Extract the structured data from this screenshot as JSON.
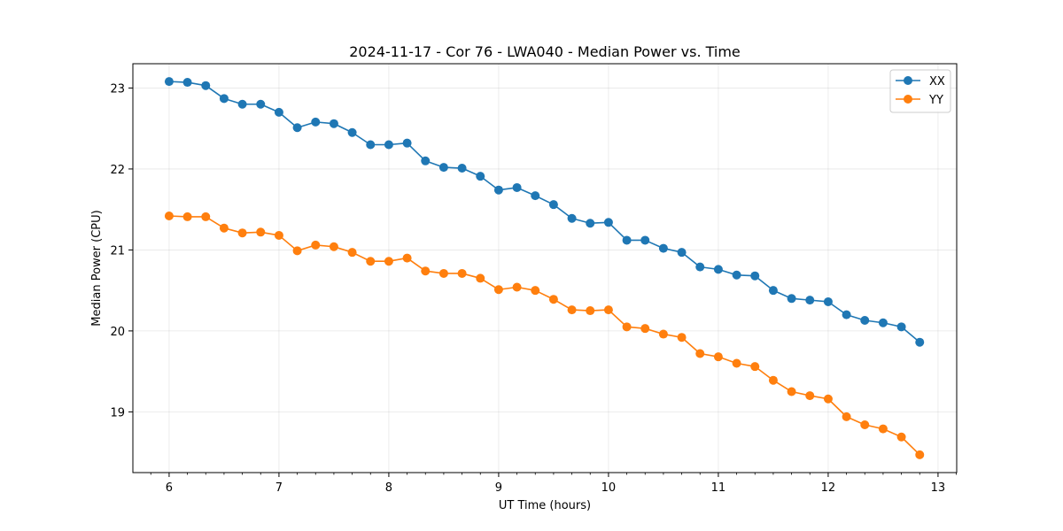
{
  "chart_data": {
    "type": "line",
    "title": "2024-11-17 - Cor 76 - LWA040 - Median Power vs. Time",
    "xlabel": "UT Time (hours)",
    "ylabel": "Median Power (CPU)",
    "xlim": [
      5.67,
      13.17
    ],
    "ylim": [
      18.25,
      23.3
    ],
    "xticks": [
      6,
      7,
      8,
      9,
      10,
      11,
      12,
      13
    ],
    "yticks": [
      19,
      20,
      21,
      22,
      23
    ],
    "grid": true,
    "legend_position": "top-right",
    "x": [
      6.0,
      6.1667,
      6.3333,
      6.5,
      6.6667,
      6.8333,
      7.0,
      7.1667,
      7.3333,
      7.5,
      7.6667,
      7.8333,
      8.0,
      8.1667,
      8.3333,
      8.5,
      8.6667,
      8.8333,
      9.0,
      9.1667,
      9.3333,
      9.5,
      9.6667,
      9.8333,
      10.0,
      10.1667,
      10.3333,
      10.5,
      10.6667,
      10.8333,
      11.0,
      11.1667,
      11.3333,
      11.5,
      11.6667,
      11.8333,
      12.0,
      12.1667,
      12.3333,
      12.5,
      12.6667,
      12.8333
    ],
    "series": [
      {
        "name": "XX",
        "color": "#1f77b4",
        "values": [
          23.08,
          23.07,
          23.03,
          22.87,
          22.8,
          22.8,
          22.7,
          22.51,
          22.58,
          22.56,
          22.45,
          22.3,
          22.3,
          22.32,
          22.1,
          22.02,
          22.01,
          21.91,
          21.74,
          21.77,
          21.67,
          21.56,
          21.39,
          21.33,
          21.34,
          21.12,
          21.12,
          21.02,
          20.97,
          20.79,
          20.76,
          20.69,
          20.68,
          20.5,
          20.4,
          20.38,
          20.36,
          20.2,
          20.13,
          20.1,
          20.05,
          19.86
        ]
      },
      {
        "name": "YY",
        "color": "#ff7f0e",
        "values": [
          21.42,
          21.41,
          21.41,
          21.27,
          21.21,
          21.22,
          21.18,
          20.99,
          21.06,
          21.04,
          20.97,
          20.86,
          20.86,
          20.9,
          20.74,
          20.71,
          20.71,
          20.65,
          20.51,
          20.54,
          20.5,
          20.39,
          20.26,
          20.25,
          20.26,
          20.05,
          20.03,
          19.96,
          19.92,
          19.72,
          19.68,
          19.6,
          19.56,
          19.39,
          19.25,
          19.2,
          19.16,
          18.94,
          18.84,
          18.79,
          18.69,
          18.47
        ]
      }
    ]
  }
}
